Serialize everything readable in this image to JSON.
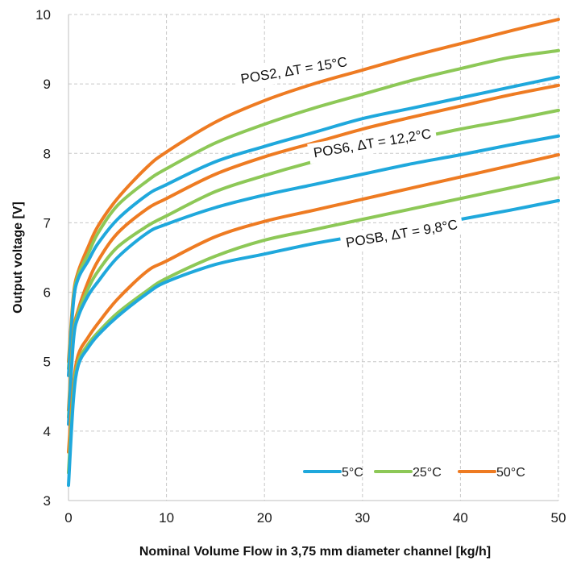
{
  "chart_data": {
    "type": "line",
    "title": "",
    "xlabel": "Nominal Volume Flow in 3,75 mm diameter channel [kg/h]",
    "ylabel": "Output voltage [V]",
    "xlim": [
      0,
      50
    ],
    "ylim": [
      3,
      10
    ],
    "x_ticks": [
      "0",
      "10",
      "20",
      "30",
      "40",
      "50"
    ],
    "y_ticks": [
      "3",
      "4",
      "5",
      "6",
      "7",
      "8",
      "9",
      "10"
    ],
    "grid": "dashed",
    "legend_position": "bottom-right",
    "legend": [
      {
        "label": "5°C",
        "color": "#1fa8dc"
      },
      {
        "label": "25°C",
        "color": "#8dc857"
      },
      {
        "label": "50°C",
        "color": "#ee7b22"
      }
    ],
    "annotations": [
      {
        "text": "POS2, ΔT = 15°C",
        "x": 23,
        "y": 9.2
      },
      {
        "text": "POS6, ΔT = 12,2°C",
        "x": 31,
        "y": 8.15
      },
      {
        "text": "POSB, ΔT = 9,8°C",
        "x": 34,
        "y": 6.85
      }
    ],
    "series": [
      {
        "color": "#ee7b22",
        "x": [
          0,
          0.5,
          1,
          2,
          3,
          5,
          8,
          10,
          15,
          20,
          25,
          30,
          35,
          40,
          45,
          50
        ],
        "y": [
          5.0,
          5.95,
          6.3,
          6.65,
          6.95,
          7.35,
          7.8,
          8.02,
          8.45,
          8.76,
          9.0,
          9.2,
          9.4,
          9.58,
          9.76,
          9.93
        ]
      },
      {
        "color": "#8dc857",
        "x": [
          0,
          0.5,
          1,
          2,
          3,
          5,
          8,
          10,
          15,
          20,
          25,
          30,
          35,
          40,
          45,
          50
        ],
        "y": [
          4.9,
          5.9,
          6.25,
          6.55,
          6.85,
          7.25,
          7.6,
          7.78,
          8.15,
          8.42,
          8.65,
          8.85,
          9.05,
          9.22,
          9.38,
          9.48
        ]
      },
      {
        "color": "#1fa8dc",
        "x": [
          0,
          0.5,
          1,
          2,
          3,
          5,
          8,
          10,
          15,
          20,
          25,
          30,
          35,
          40,
          45,
          50
        ],
        "y": [
          4.8,
          5.85,
          6.2,
          6.45,
          6.7,
          7.05,
          7.4,
          7.55,
          7.88,
          8.1,
          8.3,
          8.5,
          8.65,
          8.8,
          8.95,
          9.1
        ]
      },
      {
        "color": "#ee7b22",
        "x": [
          0,
          0.5,
          1,
          2,
          3,
          5,
          8,
          10,
          15,
          20,
          25,
          30,
          35,
          40,
          45,
          50
        ],
        "y": [
          4.3,
          5.4,
          5.75,
          6.15,
          6.45,
          6.85,
          7.2,
          7.35,
          7.7,
          7.95,
          8.15,
          8.35,
          8.52,
          8.68,
          8.84,
          8.98
        ]
      },
      {
        "color": "#8dc857",
        "x": [
          0,
          0.5,
          1,
          2,
          3,
          5,
          8,
          10,
          15,
          20,
          25,
          30,
          35,
          40,
          45,
          50
        ],
        "y": [
          4.2,
          5.35,
          5.7,
          6.05,
          6.3,
          6.65,
          6.95,
          7.1,
          7.45,
          7.68,
          7.88,
          8.05,
          8.2,
          8.35,
          8.48,
          8.62
        ]
      },
      {
        "color": "#1fa8dc",
        "x": [
          0,
          0.5,
          1,
          2,
          3,
          5,
          8,
          10,
          15,
          20,
          25,
          30,
          35,
          40,
          45,
          50
        ],
        "y": [
          4.1,
          5.3,
          5.65,
          5.95,
          6.15,
          6.5,
          6.85,
          6.98,
          7.22,
          7.4,
          7.55,
          7.7,
          7.85,
          7.98,
          8.12,
          8.25
        ]
      },
      {
        "color": "#ee7b22",
        "x": [
          0,
          0.5,
          1,
          2,
          3,
          5,
          8,
          10,
          15,
          20,
          25,
          30,
          35,
          40,
          45,
          50
        ],
        "y": [
          3.7,
          4.65,
          5.1,
          5.35,
          5.55,
          5.9,
          6.3,
          6.45,
          6.8,
          7.02,
          7.18,
          7.34,
          7.5,
          7.66,
          7.82,
          7.98
        ]
      },
      {
        "color": "#8dc857",
        "x": [
          0,
          0.5,
          1,
          2,
          3,
          5,
          8,
          10,
          15,
          20,
          25,
          30,
          35,
          40,
          45,
          50
        ],
        "y": [
          3.4,
          4.55,
          5.0,
          5.25,
          5.42,
          5.7,
          6.02,
          6.2,
          6.52,
          6.75,
          6.9,
          7.05,
          7.2,
          7.35,
          7.5,
          7.65
        ]
      },
      {
        "color": "#1fa8dc",
        "x": [
          0,
          0.5,
          1,
          2,
          3,
          5,
          8,
          10,
          15,
          20,
          25,
          30,
          35,
          40,
          45,
          50
        ],
        "y": [
          3.22,
          4.45,
          4.95,
          5.2,
          5.38,
          5.65,
          5.98,
          6.15,
          6.4,
          6.55,
          6.7,
          6.82,
          6.93,
          7.05,
          7.18,
          7.32
        ]
      }
    ]
  }
}
